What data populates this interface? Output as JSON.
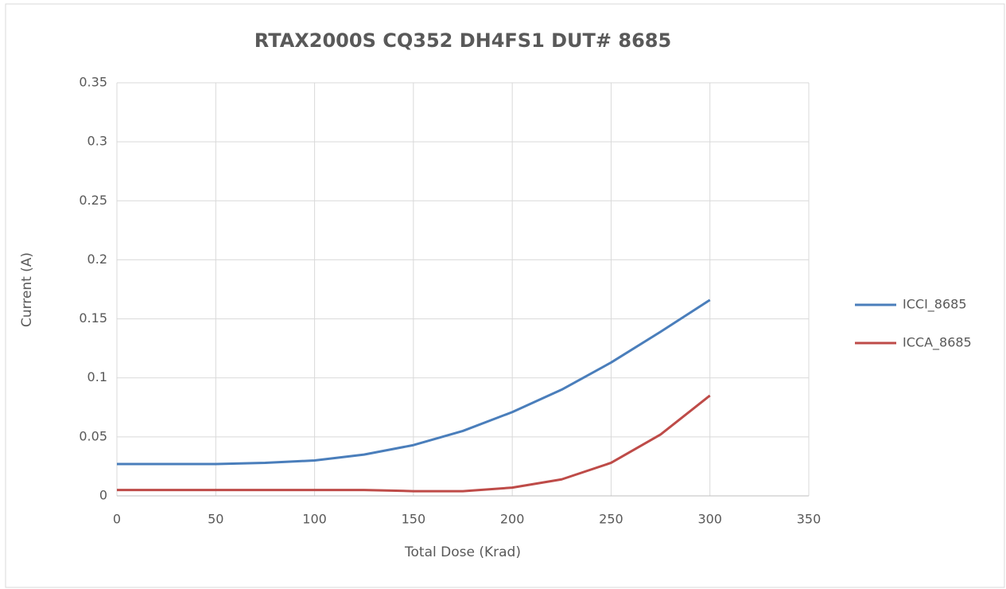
{
  "chart_data": {
    "type": "line",
    "title": "RTAX2000S CQ352 DH4FS1 DUT# 8685",
    "x_label": "Total Dose (Krad)",
    "y_label": "Current (A)",
    "x": [
      0,
      25,
      50,
      75,
      100,
      125,
      150,
      175,
      200,
      225,
      250,
      275,
      300
    ],
    "series": [
      {
        "name": "ICCI_8685",
        "color": "#4a7ebb",
        "values": [
          0.027,
          0.027,
          0.027,
          0.028,
          0.03,
          0.035,
          0.043,
          0.055,
          0.071,
          0.09,
          0.113,
          0.139,
          0.166
        ]
      },
      {
        "name": "ICCA_8685",
        "color": "#be4b48",
        "values": [
          0.005,
          0.005,
          0.005,
          0.005,
          0.005,
          0.005,
          0.004,
          0.004,
          0.007,
          0.014,
          0.028,
          0.052,
          0.085
        ]
      }
    ],
    "xlim": [
      0,
      350
    ],
    "xticks": [
      0,
      50,
      100,
      150,
      200,
      250,
      300,
      350
    ],
    "ylim": [
      0,
      0.35
    ],
    "yticks": [
      0,
      0.05,
      0.1,
      0.15,
      0.2,
      0.25,
      0.3,
      0.35
    ],
    "grid": true,
    "legend": "right"
  }
}
